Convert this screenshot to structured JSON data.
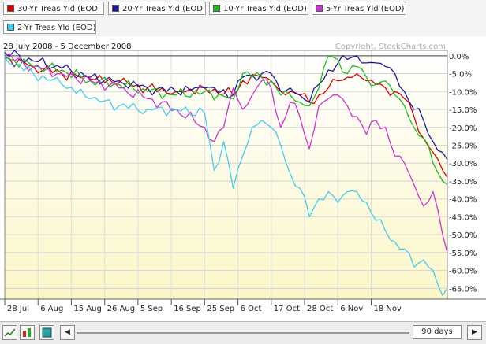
{
  "legend": [
    {
      "name": "30-Yr Treas Yld (EOD",
      "color": "#d40000"
    },
    {
      "name": "20-Yr Treas Yld (EOD",
      "color": "#1a1a9a"
    },
    {
      "name": "10-Yr Treas Yld (EOD)",
      "color": "#22bb22"
    },
    {
      "name": "5-Yr Treas Yld (EOD)",
      "color": "#cc33cc"
    },
    {
      "name": "2-Yr Treas Yld (EOD)",
      "color": "#44ccee"
    }
  ],
  "toolbar": {
    "range_label": "90 days",
    "left_arrow": "◀",
    "right_arrow": "▶"
  },
  "chart_data": {
    "type": "line",
    "date_range": "28 July 2008 - 5 December 2008",
    "watermark": "Copyright, StockCharts.com",
    "x_ticks": [
      "28 Jul",
      "6 Aug",
      "15 Aug",
      "26 Aug",
      "5 Sep",
      "16 Sep",
      "25 Sep",
      "6 Oct",
      "17 Oct",
      "28 Oct",
      "6 Nov",
      "18 Nov"
    ],
    "y_ticks": [
      "0.0%",
      "-5.0%",
      "-10.0%",
      "-15.0%",
      "-20.0%",
      "-25.0%",
      "-30.0%",
      "-35.0%",
      "-40.0%",
      "-45.0%",
      "-50.0%",
      "-55.0%",
      "-60.0%",
      "-65.0%"
    ],
    "ylim": [
      -68,
      1.5
    ],
    "n_points": 94,
    "grid": true,
    "series": [
      {
        "name": "30-Yr Treas Yld (EOD",
        "color": "#d40000",
        "anchors": [
          [
            0,
            -0.5
          ],
          [
            6,
            -3
          ],
          [
            12,
            -5
          ],
          [
            18,
            -6.5
          ],
          [
            24,
            -7.5
          ],
          [
            30,
            -9
          ],
          [
            36,
            -10
          ],
          [
            42,
            -9
          ],
          [
            48,
            -11
          ],
          [
            50,
            -7
          ],
          [
            54,
            -6
          ],
          [
            56,
            -7
          ],
          [
            58,
            -10
          ],
          [
            60,
            -10
          ],
          [
            62,
            -11
          ],
          [
            64,
            -13
          ],
          [
            66,
            -11
          ],
          [
            68,
            -9
          ],
          [
            70,
            -7
          ],
          [
            72,
            -6
          ],
          [
            74,
            -5
          ],
          [
            76,
            -7
          ],
          [
            78,
            -8
          ],
          [
            80,
            -9
          ],
          [
            82,
            -10
          ],
          [
            84,
            -12
          ],
          [
            86,
            -17
          ],
          [
            88,
            -23
          ],
          [
            90,
            -27
          ],
          [
            92,
            -32
          ],
          [
            93,
            -34
          ]
        ]
      },
      {
        "name": "20-Yr Treas Yld (EOD",
        "color": "#1a1a9a",
        "anchors": [
          [
            0,
            1
          ],
          [
            6,
            -1.5
          ],
          [
            12,
            -3.5
          ],
          [
            18,
            -6
          ],
          [
            24,
            -7
          ],
          [
            30,
            -9
          ],
          [
            36,
            -10
          ],
          [
            42,
            -9
          ],
          [
            48,
            -11
          ],
          [
            50,
            -6
          ],
          [
            54,
            -5
          ],
          [
            56,
            -5
          ],
          [
            58,
            -10
          ],
          [
            60,
            -9
          ],
          [
            62,
            -11
          ],
          [
            64,
            -13
          ],
          [
            66,
            -8
          ],
          [
            68,
            -4
          ],
          [
            70,
            -2
          ],
          [
            72,
            -1
          ],
          [
            74,
            0
          ],
          [
            76,
            -2
          ],
          [
            78,
            -2
          ],
          [
            80,
            -3
          ],
          [
            82,
            -5
          ],
          [
            84,
            -10
          ],
          [
            86,
            -15
          ],
          [
            88,
            -18
          ],
          [
            90,
            -24
          ],
          [
            92,
            -27
          ],
          [
            93,
            -29
          ]
        ]
      },
      {
        "name": "10-Yr Treas Yld (EOD)",
        "color": "#22bb22",
        "anchors": [
          [
            0,
            -0.5
          ],
          [
            6,
            -3
          ],
          [
            12,
            -4
          ],
          [
            18,
            -7
          ],
          [
            24,
            -8
          ],
          [
            30,
            -10
          ],
          [
            36,
            -11
          ],
          [
            42,
            -10
          ],
          [
            48,
            -12
          ],
          [
            50,
            -5
          ],
          [
            54,
            -6
          ],
          [
            56,
            -7
          ],
          [
            58,
            -11
          ],
          [
            60,
            -11
          ],
          [
            62,
            -13
          ],
          [
            64,
            -14
          ],
          [
            66,
            -9
          ],
          [
            68,
            0
          ],
          [
            70,
            -1
          ],
          [
            72,
            -5
          ],
          [
            74,
            -3
          ],
          [
            76,
            -6
          ],
          [
            78,
            -8
          ],
          [
            80,
            -7
          ],
          [
            82,
            -11
          ],
          [
            84,
            -14
          ],
          [
            86,
            -20
          ],
          [
            88,
            -23
          ],
          [
            90,
            -30
          ],
          [
            92,
            -35
          ],
          [
            93,
            -36
          ]
        ]
      },
      {
        "name": "5-Yr Treas Yld (EOD)",
        "color": "#cc33cc",
        "anchors": [
          [
            0,
            0
          ],
          [
            6,
            -3
          ],
          [
            12,
            -5
          ],
          [
            18,
            -7
          ],
          [
            24,
            -9
          ],
          [
            30,
            -12
          ],
          [
            36,
            -15
          ],
          [
            42,
            -20
          ],
          [
            44,
            -24
          ],
          [
            46,
            -20
          ],
          [
            48,
            -9
          ],
          [
            50,
            -15
          ],
          [
            52,
            -11
          ],
          [
            54,
            -7
          ],
          [
            56,
            -9
          ],
          [
            58,
            -20
          ],
          [
            60,
            -13
          ],
          [
            62,
            -17
          ],
          [
            64,
            -26
          ],
          [
            66,
            -14
          ],
          [
            68,
            -12
          ],
          [
            70,
            -11
          ],
          [
            72,
            -14
          ],
          [
            74,
            -17
          ],
          [
            76,
            -22
          ],
          [
            78,
            -18
          ],
          [
            80,
            -20
          ],
          [
            82,
            -28
          ],
          [
            84,
            -30
          ],
          [
            86,
            -36
          ],
          [
            88,
            -42
          ],
          [
            90,
            -38
          ],
          [
            92,
            -50
          ],
          [
            93,
            -55
          ]
        ]
      },
      {
        "name": "2-Yr Treas Yld (EOD)",
        "color": "#44ccee",
        "anchors": [
          [
            0,
            -0.5
          ],
          [
            6,
            -5
          ],
          [
            12,
            -8
          ],
          [
            18,
            -12
          ],
          [
            24,
            -14
          ],
          [
            30,
            -15
          ],
          [
            36,
            -15
          ],
          [
            42,
            -16
          ],
          [
            44,
            -32
          ],
          [
            46,
            -24
          ],
          [
            48,
            -37
          ],
          [
            50,
            -28
          ],
          [
            52,
            -20
          ],
          [
            54,
            -18
          ],
          [
            56,
            -20
          ],
          [
            58,
            -25
          ],
          [
            60,
            -33
          ],
          [
            62,
            -37
          ],
          [
            64,
            -45
          ],
          [
            66,
            -40
          ],
          [
            68,
            -38
          ],
          [
            70,
            -41
          ],
          [
            72,
            -38
          ],
          [
            74,
            -38
          ],
          [
            76,
            -41
          ],
          [
            78,
            -46
          ],
          [
            80,
            -49
          ],
          [
            82,
            -52
          ],
          [
            84,
            -54
          ],
          [
            86,
            -59
          ],
          [
            88,
            -57
          ],
          [
            90,
            -60
          ],
          [
            92,
            -67
          ],
          [
            93,
            -65
          ]
        ]
      }
    ]
  }
}
